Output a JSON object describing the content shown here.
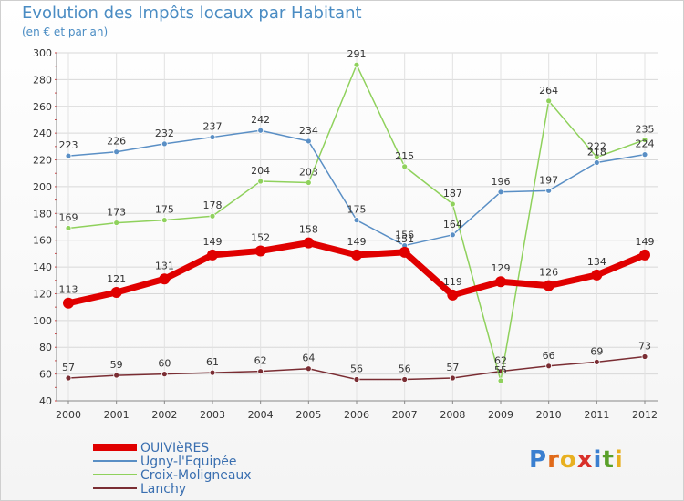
{
  "header": {
    "title": "Evolution des Impôts locaux par Habitant",
    "subtitle": "(en € et par an)"
  },
  "brand": {
    "letters": [
      "P",
      "r",
      "o",
      "x",
      "i",
      "t",
      "i"
    ],
    "colors": [
      "#3a7fd0",
      "#e06a1a",
      "#e8b020",
      "#d9302a",
      "#3a7fd0",
      "#5aa02a",
      "#e8b020"
    ]
  },
  "chart_data": {
    "type": "line",
    "title": "Evolution des Impôts locaux par Habitant",
    "subtitle": "(en € et par an)",
    "x": [
      "2000",
      "2001",
      "2002",
      "2003",
      "2004",
      "2005",
      "2006",
      "2007",
      "2008",
      "2009",
      "2010",
      "2011",
      "2012"
    ],
    "ylim": [
      40,
      300
    ],
    "yticks": [
      40,
      60,
      80,
      100,
      120,
      140,
      160,
      180,
      200,
      220,
      240,
      260,
      280,
      300
    ],
    "grid": true,
    "legend_position": "bottom-left",
    "series": [
      {
        "name": "OUIVIèRES",
        "color": "#e00000",
        "values": [
          113,
          121,
          131,
          149,
          152,
          158,
          149,
          151,
          119,
          129,
          126,
          134,
          149
        ]
      },
      {
        "name": "Ugny-l'Equipée",
        "color": "#5a8fc5",
        "values": [
          223,
          226,
          232,
          237,
          242,
          234,
          175,
          156,
          164,
          196,
          197,
          218,
          224
        ]
      },
      {
        "name": "Croix-Moligneaux",
        "color": "#8fd15c",
        "values": [
          169,
          173,
          175,
          178,
          204,
          203,
          291,
          215,
          187,
          55,
          264,
          222,
          235
        ]
      },
      {
        "name": "Lanchy",
        "color": "#7a2d33",
        "values": [
          57,
          59,
          60,
          61,
          62,
          64,
          56,
          56,
          57,
          62,
          66,
          69,
          73
        ]
      }
    ],
    "data_labels": [
      [
        "113",
        "121",
        "131",
        "149",
        "152",
        "158",
        "149",
        "151",
        "119",
        "129",
        "126",
        "134",
        "149"
      ],
      [
        "223",
        "226",
        "232",
        "237",
        "242",
        "234",
        "175",
        "156",
        "164",
        "196",
        "197",
        "218",
        "224"
      ],
      [
        "169",
        "173",
        "175",
        "178",
        "204",
        "203",
        "291",
        "215",
        "187",
        "55",
        "264",
        "222",
        "235"
      ],
      [
        "57",
        "59",
        "60",
        "61",
        "62",
        "64",
        "56",
        "56",
        "57",
        "62",
        "66",
        "69",
        "73"
      ]
    ]
  }
}
